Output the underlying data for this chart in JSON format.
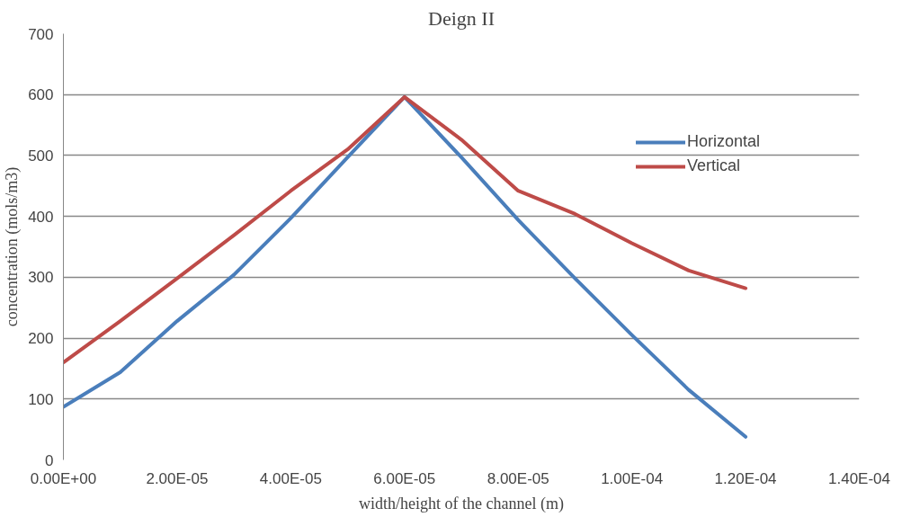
{
  "chart_data": {
    "type": "line",
    "title": "Deign II",
    "xlabel": "width/height of the channel (m)",
    "ylabel": "concentration (mols/m3)",
    "x": [
      0,
      1e-05,
      2e-05,
      3e-05,
      4e-05,
      5e-05,
      6e-05,
      7e-05,
      8e-05,
      9e-05,
      0.0001,
      0.00011,
      0.00012
    ],
    "series": [
      {
        "name": "Horizontal",
        "color": "#4a7ebb",
        "values": [
          87,
          144,
          228,
          304,
          397,
          497,
          596,
          497,
          394,
          298,
          205,
          115,
          38
        ]
      },
      {
        "name": "Vertical",
        "color": "#be4b48",
        "values": [
          160,
          228,
          298,
          369,
          442,
          510,
          596,
          526,
          442,
          404,
          356,
          311,
          282
        ]
      }
    ],
    "xlim": [
      0,
      0.00014
    ],
    "xticks": [
      {
        "value": 0,
        "label": "0.00E+00"
      },
      {
        "value": 2e-05,
        "label": "2.00E-05"
      },
      {
        "value": 4e-05,
        "label": "4.00E-05"
      },
      {
        "value": 6e-05,
        "label": "6.00E-05"
      },
      {
        "value": 8e-05,
        "label": "8.00E-05"
      },
      {
        "value": 0.0001,
        "label": "1.00E-04"
      },
      {
        "value": 0.00012,
        "label": "1.20E-04"
      },
      {
        "value": 0.00014,
        "label": "1.40E-04"
      }
    ],
    "ylim": [
      0,
      700
    ],
    "yticks": [
      0,
      100,
      200,
      300,
      400,
      500,
      600,
      700
    ],
    "grid": "y",
    "legend": "right",
    "marker": "none",
    "line_style": "solid"
  }
}
